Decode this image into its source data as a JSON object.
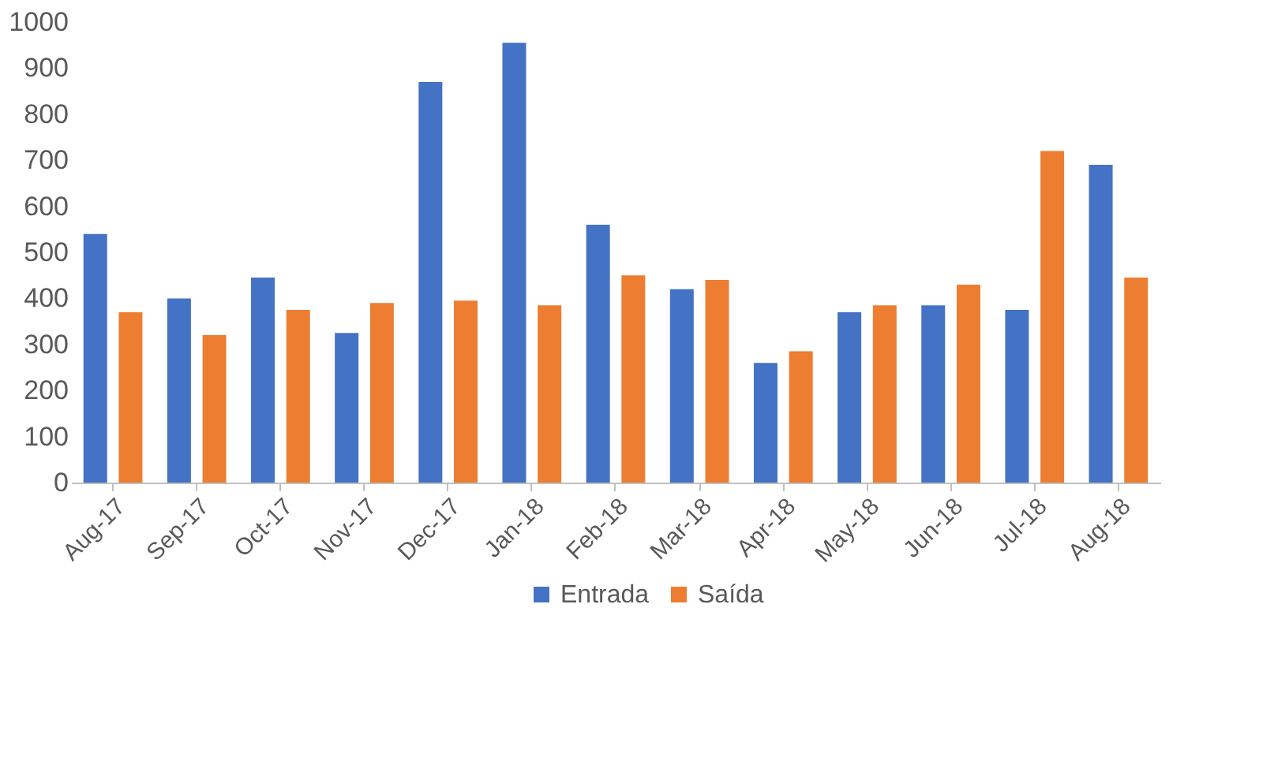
{
  "chart_data": {
    "type": "bar",
    "categories": [
      "Aug-17",
      "Sep-17",
      "Oct-17",
      "Nov-17",
      "Dec-17",
      "Jan-18",
      "Feb-18",
      "Mar-18",
      "Apr-18",
      "May-18",
      "Jun-18",
      "Jul-18",
      "Aug-18"
    ],
    "series": [
      {
        "name": "Entrada",
        "color": "#4472c4",
        "values": [
          540,
          400,
          445,
          325,
          870,
          955,
          560,
          420,
          260,
          370,
          385,
          375,
          690
        ]
      },
      {
        "name": "Saída",
        "color": "#ed7d31",
        "values": [
          370,
          320,
          375,
          390,
          395,
          385,
          450,
          440,
          285,
          385,
          430,
          720,
          445
        ]
      }
    ],
    "ylim": [
      0,
      1000
    ],
    "yticks": [
      0,
      100,
      200,
      300,
      400,
      500,
      600,
      700,
      800,
      900,
      1000
    ],
    "grid": false,
    "legend": "bottom"
  }
}
